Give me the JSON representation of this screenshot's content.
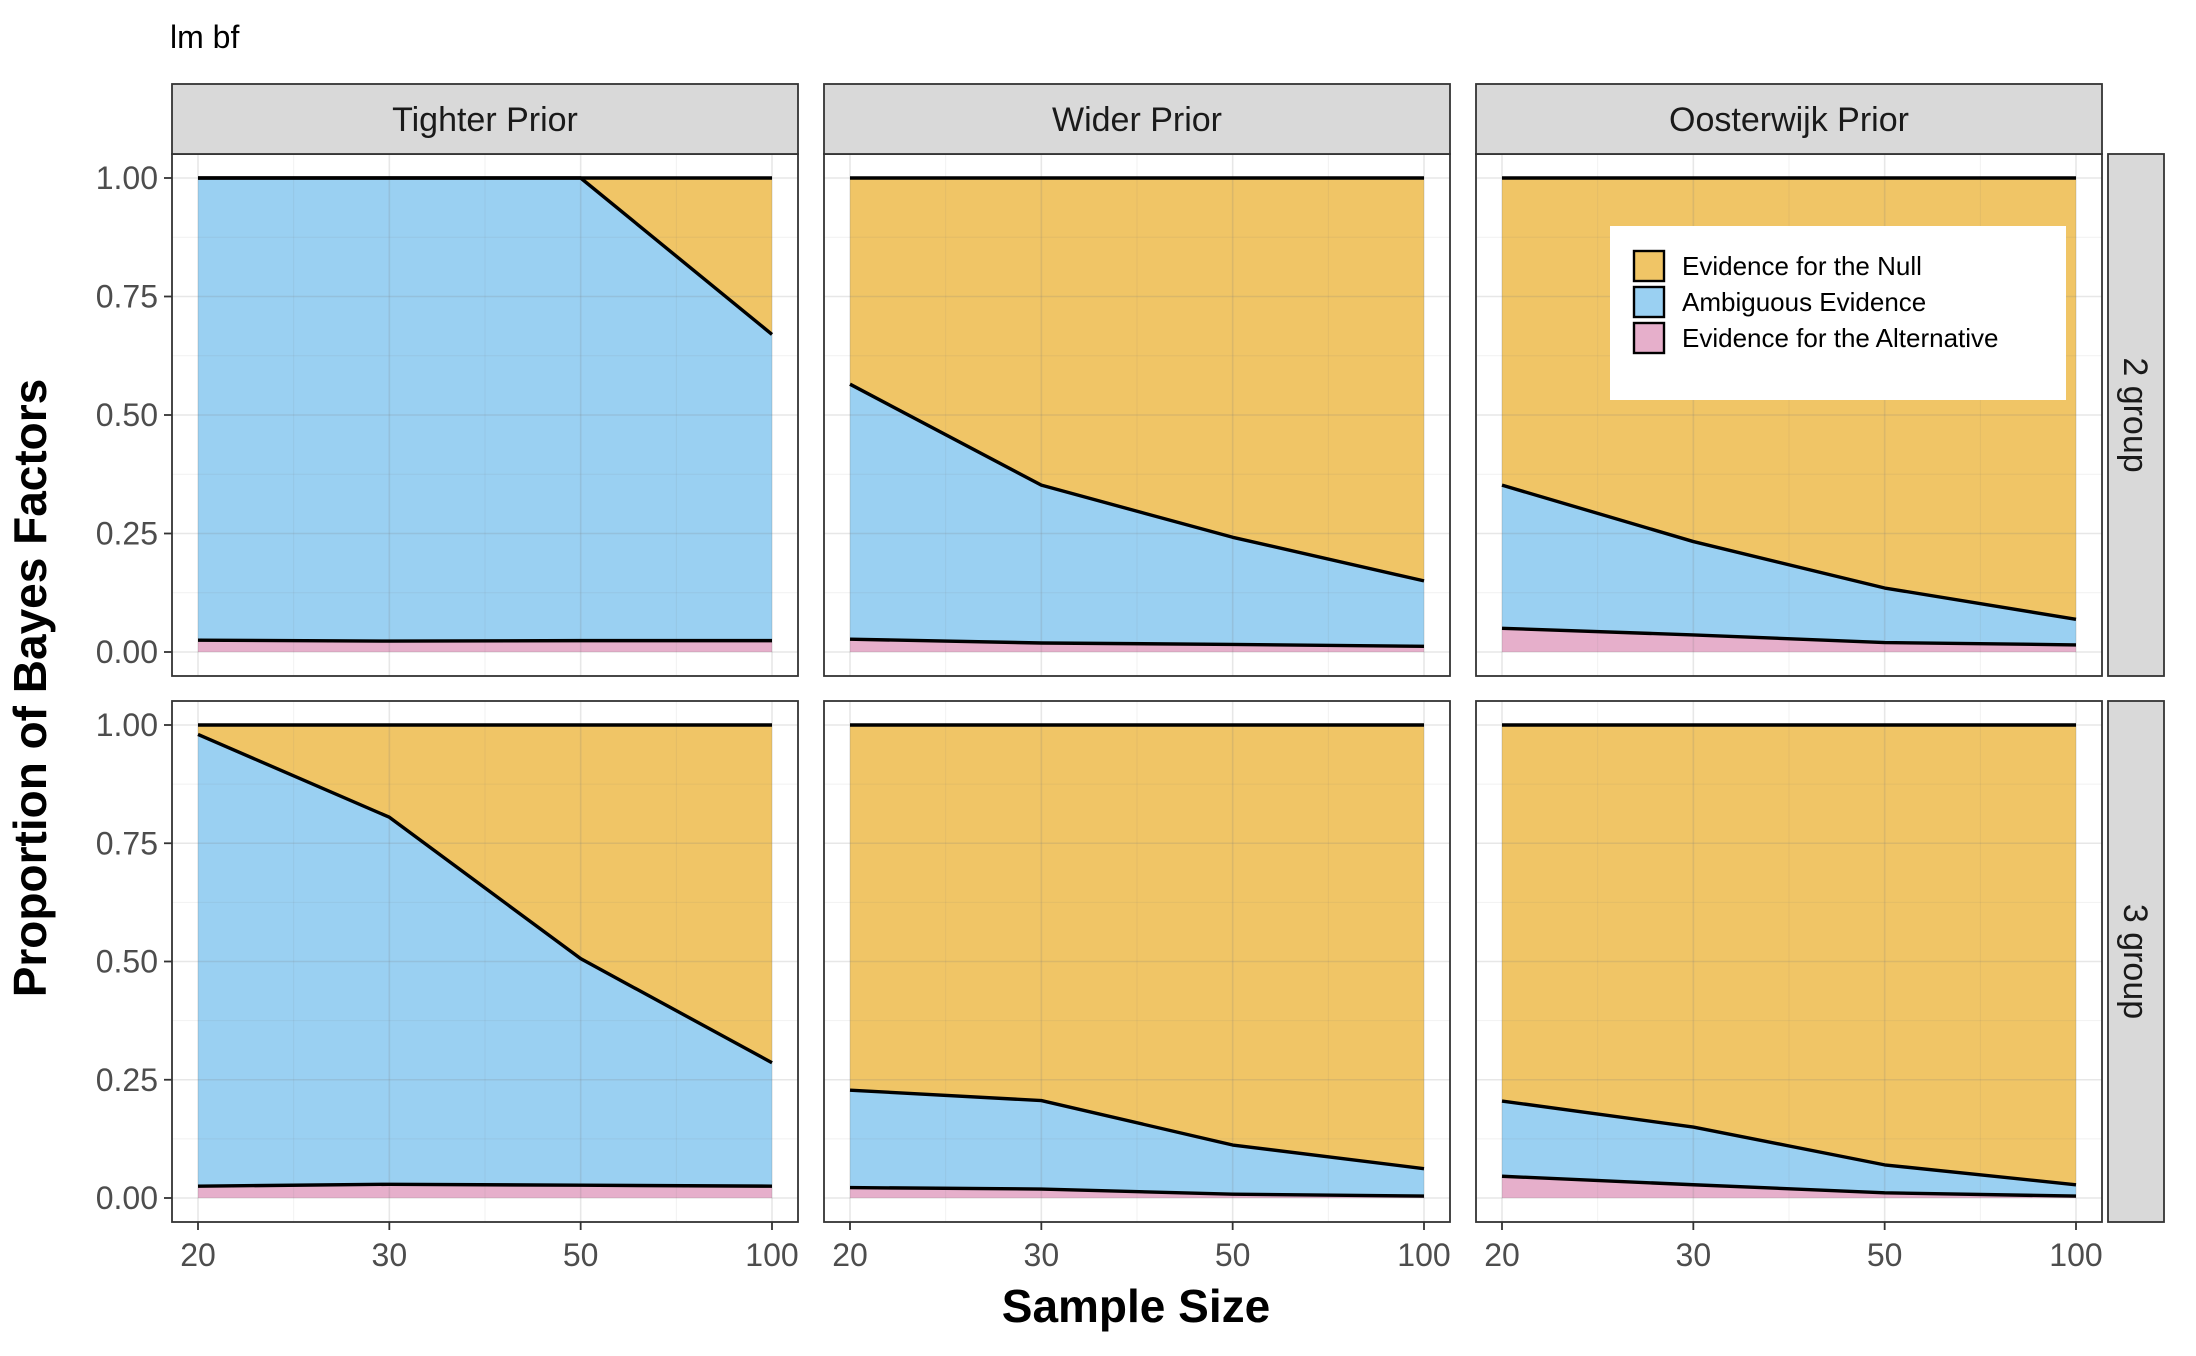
{
  "chart_data": {
    "type": "area",
    "stacked": true,
    "title": "lm bf",
    "xlabel": "Sample Size",
    "ylabel": "Proportion of Bayes Factors",
    "x": [
      20,
      30,
      50,
      100
    ],
    "x_scale": "categorical",
    "ylim": [
      0,
      1
    ],
    "y_ticks": [
      "0.00",
      "0.25",
      "0.50",
      "0.75",
      "1.00"
    ],
    "grid": true,
    "legend_position": "top-right (inside 2 group / Oosterwijk Prior panel)",
    "legend": [
      {
        "name": "Evidence for the Null",
        "color": "#F0C566"
      },
      {
        "name": "Ambiguous Evidence",
        "color": "#9AD0F2"
      },
      {
        "name": "Evidence for the Alternative",
        "color": "#E6AFCB"
      }
    ],
    "col_facets": [
      "Tighter Prior",
      "Wider Prior",
      "Oosterwijk Prior"
    ],
    "row_facets": [
      "2 group",
      "3 group"
    ],
    "panels": [
      {
        "row": 0,
        "col": 0,
        "alternative": [
          0.025,
          0.023,
          0.024,
          0.024
        ],
        "ambiguous": [
          0.975,
          0.977,
          0.976,
          0.646
        ]
      },
      {
        "row": 0,
        "col": 1,
        "alternative": [
          0.027,
          0.019,
          0.016,
          0.012
        ],
        "ambiguous": [
          0.538,
          0.333,
          0.226,
          0.138
        ]
      },
      {
        "row": 0,
        "col": 2,
        "alternative": [
          0.05,
          0.036,
          0.02,
          0.015
        ],
        "ambiguous": [
          0.302,
          0.197,
          0.115,
          0.054
        ]
      },
      {
        "row": 1,
        "col": 0,
        "alternative": [
          0.025,
          0.029,
          0.027,
          0.025
        ],
        "ambiguous": [
          0.955,
          0.776,
          0.479,
          0.261
        ]
      },
      {
        "row": 1,
        "col": 1,
        "alternative": [
          0.022,
          0.019,
          0.008,
          0.004
        ],
        "ambiguous": [
          0.206,
          0.187,
          0.104,
          0.058
        ]
      },
      {
        "row": 1,
        "col": 2,
        "alternative": [
          0.046,
          0.028,
          0.011,
          0.004
        ],
        "ambiguous": [
          0.159,
          0.122,
          0.059,
          0.024
        ]
      }
    ]
  }
}
